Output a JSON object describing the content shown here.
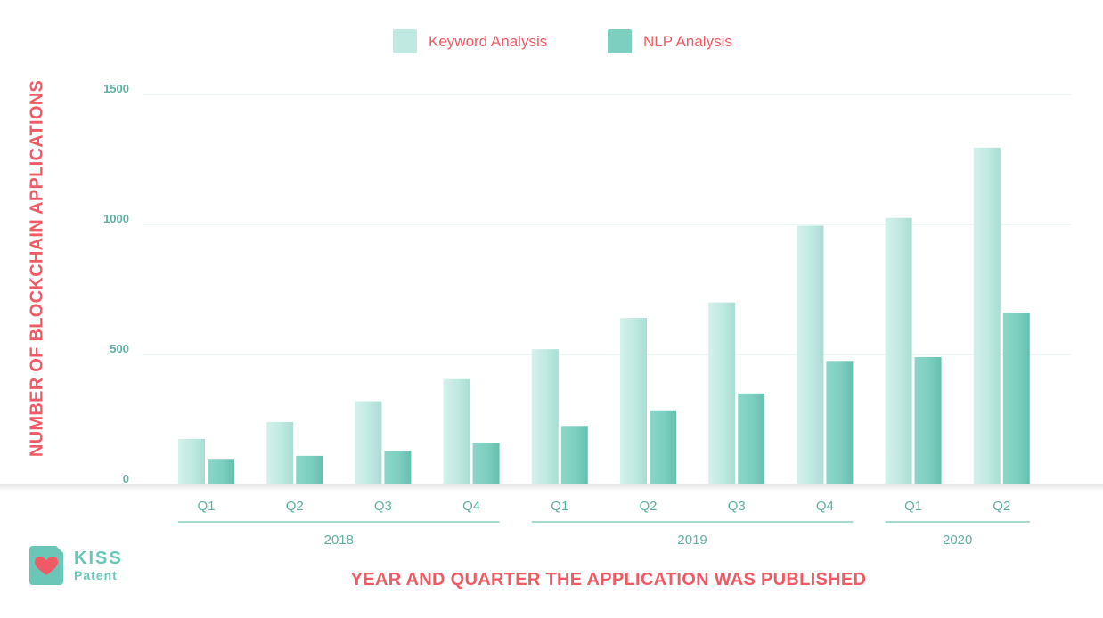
{
  "legend": {
    "keyword_label": "Keyword Analysis",
    "nlp_label": "NLP Analysis"
  },
  "colors": {
    "keyword": "#bfe9e1",
    "nlp": "#7dcfc0",
    "accent": "#f05a64",
    "axis_text": "#5fb0a3",
    "grid": "#d9efea"
  },
  "logo": {
    "word1": "KISS",
    "word2": "Patent",
    "icon": "heart-icon"
  },
  "chart_data": {
    "type": "bar",
    "title": "",
    "xlabel": "YEAR AND QUARTER THE APPLICATION WAS PUBLISHED",
    "ylabel": "NUMBER OF BLOCKCHAIN APPLICATIONS",
    "ylim": [
      0,
      1500
    ],
    "yticks": [
      0,
      500,
      1000,
      1500
    ],
    "grid": true,
    "legend_position": "top-center",
    "categories": [
      "Q1",
      "Q2",
      "Q3",
      "Q4",
      "Q1",
      "Q2",
      "Q3",
      "Q4",
      "Q1",
      "Q2"
    ],
    "groups": [
      {
        "label": "2018",
        "start": 0,
        "end": 3
      },
      {
        "label": "2019",
        "start": 4,
        "end": 7
      },
      {
        "label": "2020",
        "start": 8,
        "end": 9
      }
    ],
    "series": [
      {
        "name": "Keyword Analysis",
        "values": [
          175,
          240,
          320,
          405,
          520,
          640,
          700,
          995,
          1025,
          1295
        ]
      },
      {
        "name": "NLP Analysis",
        "values": [
          95,
          110,
          130,
          160,
          225,
          285,
          350,
          475,
          490,
          660
        ]
      }
    ]
  }
}
